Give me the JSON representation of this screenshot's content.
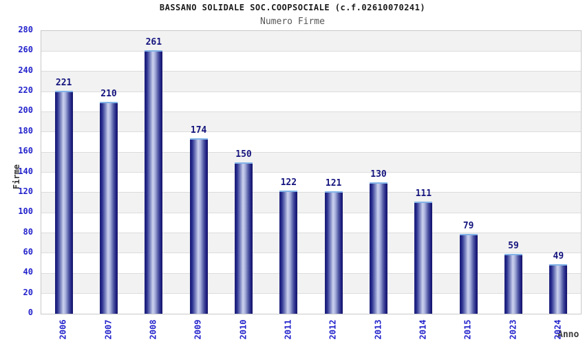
{
  "title": "BASSANO SOLIDALE SOC.COOPSOCIALE (c.f.02610070241)",
  "subtitle": "Numero Firme",
  "chart_data": {
    "type": "bar",
    "categories": [
      "2006",
      "2007",
      "2008",
      "2009",
      "2010",
      "2011",
      "2012",
      "2013",
      "2014",
      "2015",
      "2023",
      "2024"
    ],
    "values": [
      221,
      210,
      261,
      174,
      150,
      122,
      121,
      130,
      111,
      79,
      59,
      49
    ],
    "title": "BASSANO SOLIDALE SOC.COOPSOCIALE (c.f.02610070241)",
    "subtitle": "Numero Firme",
    "xlabel": "Anno",
    "ylabel": "Firme",
    "ylim": [
      0,
      280
    ],
    "ytick_step": 20,
    "grid": "horizontal gridlines with alternating gray/white bands",
    "legend": "none",
    "bar_value_labels": true
  },
  "colors": {
    "bar_edge": "#191975",
    "bar_center": "#ccd2ee",
    "bar_top_cap": "#82b4e8",
    "axis_tick_label": "#2222cc",
    "value_label": "#14147e",
    "band_gray": "#f2f2f2",
    "gridline": "#dcdcdc",
    "plot_border": "#c8c8c8",
    "subtitle_text": "#555555",
    "axis_title_text": "#333333"
  }
}
